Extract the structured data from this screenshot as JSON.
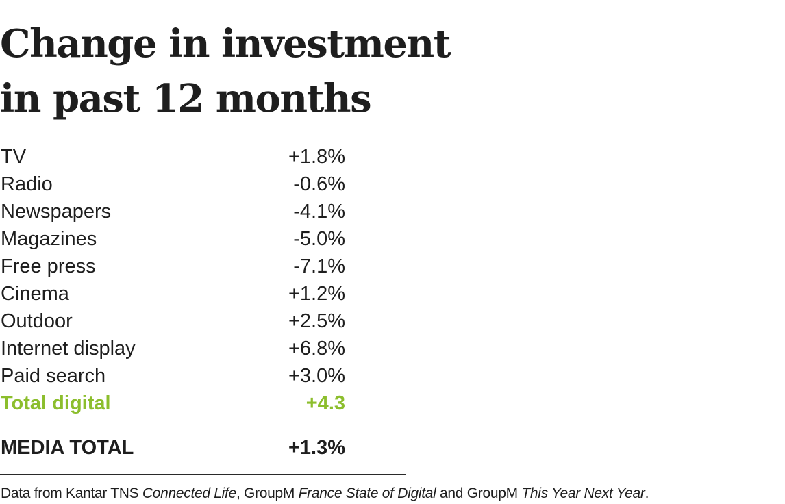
{
  "chart_data": {
    "type": "table",
    "title": "Change in investment in past 12 months",
    "rows": [
      {
        "label": "TV",
        "value": "+1.8%"
      },
      {
        "label": "Radio",
        "value": "-0.6%"
      },
      {
        "label": "Newspapers",
        "value": "-4.1%"
      },
      {
        "label": "Magazines",
        "value": "-5.0%"
      },
      {
        "label": "Free press",
        "value": "-7.1%"
      },
      {
        "label": "Cinema",
        "value": "+1.2%"
      },
      {
        "label": "Outdoor",
        "value": "+2.5%"
      },
      {
        "label": "Internet display",
        "value": "+6.8%"
      },
      {
        "label": "Paid search",
        "value": "+3.0%"
      }
    ],
    "highlight_row": {
      "label": "Total digital",
      "value": "+4.3"
    },
    "total_row": {
      "label": "MEDIA TOTAL",
      "value": "+1.3%"
    },
    "highlight_color": "#8cbe2d"
  },
  "source": {
    "prefix": "Data from Kantar TNS ",
    "pub1": "Connected Life",
    "mid1": ", GroupM ",
    "pub2": "France State of Digital",
    "mid2": " and GroupM ",
    "pub3": "This Year Next Year",
    "suffix": "."
  }
}
